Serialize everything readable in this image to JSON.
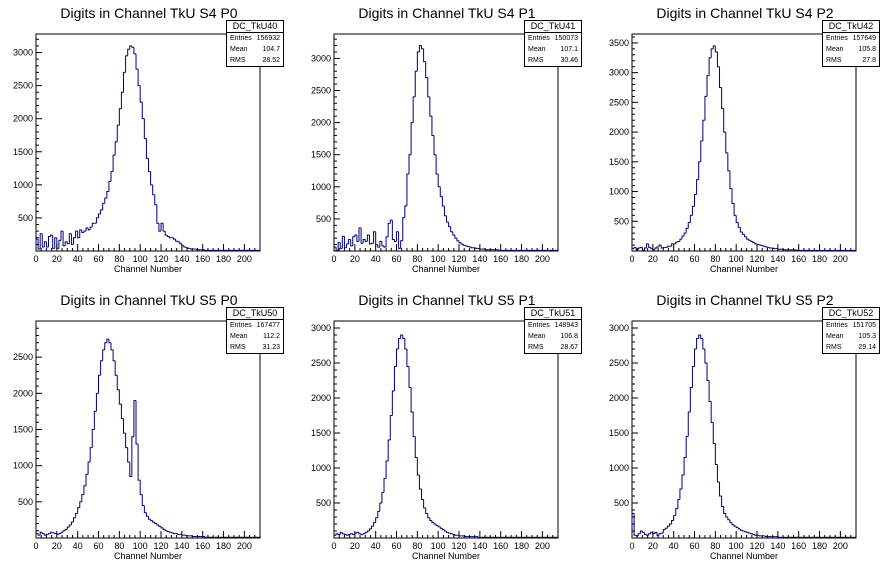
{
  "x_axis_label": "Channel Number",
  "stats_labels": {
    "entries": "Entries",
    "mean": "Mean",
    "rms": "RMS"
  },
  "colors": {
    "histogram": "#00007f",
    "axes": "#000000",
    "frame": "#000000"
  },
  "chart_data": [
    {
      "type": "histogram",
      "title": "Digits in Channel TkU S4 P0",
      "stats": {
        "name": "DC_TkU40",
        "entries": "156932",
        "mean": "104.7",
        "rms": "28.52"
      },
      "xlabel": "Channel Number",
      "xlim": [
        0,
        215
      ],
      "ylim": [
        0,
        3280
      ],
      "xticks": [
        0,
        20,
        40,
        60,
        80,
        100,
        120,
        140,
        160,
        180,
        200
      ],
      "yticks": [
        500,
        1000,
        1500,
        2000,
        2500,
        3000
      ],
      "bin_width": 2,
      "values": [
        180,
        30,
        260,
        60,
        140,
        60,
        220,
        240,
        40,
        200,
        40,
        160,
        300,
        80,
        140,
        110,
        260,
        100,
        200,
        300,
        200,
        320,
        280,
        300,
        350,
        320,
        360,
        420,
        420,
        500,
        560,
        620,
        720,
        800,
        900,
        1050,
        1200,
        1450,
        1650,
        1900,
        2150,
        2400,
        2700,
        2950,
        3050,
        3100,
        3080,
        2980,
        2750,
        2500,
        2250,
        2000,
        1700,
        1400,
        1200,
        1000,
        850,
        700,
        420,
        300,
        420,
        300,
        240,
        220,
        200,
        200,
        180,
        150,
        140,
        110,
        80,
        60,
        50,
        40,
        30,
        30,
        30,
        20,
        20,
        20,
        20,
        10,
        10,
        10,
        10,
        10,
        10,
        10,
        10,
        10,
        10,
        10,
        10,
        10,
        10,
        10,
        10,
        10,
        10,
        10,
        10,
        10,
        10,
        10,
        10,
        10,
        10,
        10
      ]
    },
    {
      "type": "histogram",
      "title": "Digits in Channel TkU S4 P1",
      "stats": {
        "name": "DC_TkU41",
        "entries": "150073",
        "mean": "107.1",
        "rms": "30.46"
      },
      "xlabel": "Channel Number",
      "xlim": [
        0,
        215
      ],
      "ylim": [
        0,
        3380
      ],
      "xticks": [
        0,
        20,
        40,
        60,
        80,
        100,
        120,
        140,
        160,
        180,
        200
      ],
      "yticks": [
        500,
        1000,
        1500,
        2000,
        2500,
        3000
      ],
      "bin_width": 2,
      "values": [
        60,
        10,
        130,
        40,
        230,
        50,
        110,
        180,
        80,
        220,
        250,
        150,
        360,
        120,
        180,
        150,
        250,
        110,
        120,
        300,
        100,
        60,
        150,
        80,
        60,
        220,
        430,
        480,
        180,
        150,
        300,
        40,
        160,
        520,
        700,
        1200,
        1500,
        2000,
        2400,
        2800,
        3100,
        3200,
        3150,
        2950,
        2700,
        2400,
        2100,
        1800,
        1500,
        1200,
        1000,
        850,
        700,
        550,
        450,
        380,
        300,
        250,
        200,
        160,
        130,
        110,
        90,
        80,
        70,
        60,
        50,
        50,
        40,
        40,
        30,
        30,
        30,
        20,
        20,
        20,
        20,
        20,
        20,
        10,
        10,
        10,
        10,
        10,
        10,
        10,
        10,
        10,
        10,
        10,
        10,
        10,
        10,
        10,
        10,
        10,
        10,
        10,
        10,
        10,
        10,
        10,
        10,
        10,
        10,
        10,
        10,
        10
      ]
    },
    {
      "type": "histogram",
      "title": "Digits in Channel TkU S4 P2",
      "stats": {
        "name": "DC_TkU42",
        "entries": "157649",
        "mean": "105.8",
        "rms": "27.8"
      },
      "xlabel": "Channel Number",
      "xlim": [
        0,
        215
      ],
      "ylim": [
        0,
        3650
      ],
      "xticks": [
        0,
        20,
        40,
        60,
        80,
        100,
        120,
        140,
        160,
        180,
        200
      ],
      "yticks": [
        500,
        1000,
        1500,
        2000,
        2500,
        3000,
        3500
      ],
      "bin_width": 2,
      "values": [
        40,
        60,
        20,
        50,
        60,
        10,
        50,
        120,
        60,
        40,
        20,
        50,
        70,
        100,
        50,
        60,
        60,
        80,
        80,
        120,
        120,
        150,
        160,
        200,
        250,
        300,
        380,
        480,
        600,
        750,
        950,
        1200,
        1500,
        1850,
        2200,
        2600,
        2950,
        3250,
        3400,
        3450,
        3350,
        3100,
        2750,
        2400,
        2000,
        1650,
        1350,
        1050,
        800,
        600,
        480,
        400,
        320,
        280,
        240,
        200,
        180,
        160,
        140,
        120,
        110,
        100,
        90,
        80,
        70,
        60,
        50,
        50,
        40,
        40,
        30,
        30,
        30,
        20,
        20,
        20,
        20,
        20,
        20,
        10,
        10,
        10,
        10,
        10,
        10,
        10,
        10,
        10,
        10,
        10,
        10,
        10,
        10,
        10,
        10,
        10,
        10,
        10,
        10,
        10,
        10,
        10,
        10,
        10,
        10,
        10,
        10,
        10
      ]
    },
    {
      "type": "histogram",
      "title": "Digits in Channel TkU S5 P0",
      "stats": {
        "name": "DC_TkU50",
        "entries": "167477",
        "mean": "112.2",
        "rms": "31.23"
      },
      "xlabel": "Channel Number",
      "xlim": [
        0,
        215
      ],
      "ylim": [
        0,
        3000
      ],
      "xticks": [
        0,
        20,
        40,
        60,
        80,
        100,
        120,
        140,
        160,
        180,
        200
      ],
      "yticks": [
        500,
        1000,
        1500,
        2000,
        2500
      ],
      "bin_width": 2,
      "values": [
        60,
        40,
        80,
        60,
        40,
        50,
        60,
        80,
        70,
        60,
        50,
        60,
        80,
        100,
        120,
        150,
        180,
        220,
        280,
        340,
        420,
        500,
        600,
        720,
        880,
        1050,
        1250,
        1500,
        1750,
        2000,
        2250,
        2450,
        2600,
        2700,
        2750,
        2700,
        2600,
        2450,
        2250,
        2050,
        1850,
        1650,
        1450,
        1250,
        1050,
        850,
        1400,
        1900,
        1300,
        800,
        600,
        450,
        350,
        300,
        260,
        240,
        220,
        200,
        180,
        160,
        140,
        120,
        100,
        90,
        80,
        70,
        60,
        60,
        50,
        50,
        40,
        40,
        30,
        30,
        30,
        20,
        20,
        20,
        20,
        20,
        20,
        10,
        10,
        10,
        10,
        10,
        10,
        10,
        10,
        10,
        10,
        10,
        10,
        10,
        10,
        10,
        10,
        10,
        10,
        10,
        10,
        10,
        10,
        10,
        10,
        10,
        10,
        10
      ]
    },
    {
      "type": "histogram",
      "title": "Digits in Channel TkU S5 P1",
      "stats": {
        "name": "DC_TkU51",
        "entries": "148943",
        "mean": "106.8",
        "rms": "28.67"
      },
      "xlabel": "Channel Number",
      "xlim": [
        0,
        215
      ],
      "ylim": [
        0,
        3100
      ],
      "xticks": [
        0,
        20,
        40,
        60,
        80,
        100,
        120,
        140,
        160,
        180,
        200
      ],
      "yticks": [
        500,
        1000,
        1500,
        2000,
        2500,
        3000
      ],
      "bin_width": 2,
      "values": [
        40,
        60,
        50,
        80,
        60,
        50,
        40,
        50,
        60,
        50,
        70,
        80,
        60,
        50,
        60,
        80,
        100,
        130,
        170,
        220,
        290,
        380,
        500,
        650,
        850,
        1100,
        1400,
        1750,
        2100,
        2450,
        2700,
        2850,
        2900,
        2850,
        2700,
        2450,
        2150,
        1800,
        1450,
        1150,
        900,
        700,
        550,
        430,
        350,
        290,
        250,
        220,
        200,
        180,
        160,
        140,
        120,
        100,
        80,
        70,
        60,
        50,
        40,
        40,
        30,
        30,
        30,
        20,
        20,
        20,
        20,
        20,
        20,
        10,
        10,
        10,
        10,
        10,
        10,
        10,
        10,
        10,
        10,
        10,
        10,
        10,
        10,
        10,
        10,
        10,
        10,
        10,
        10,
        10,
        10,
        10,
        10,
        10,
        10,
        10,
        10,
        10,
        10,
        10,
        10,
        10,
        10,
        10,
        10,
        10,
        10,
        10
      ]
    },
    {
      "type": "histogram",
      "title": "Digits in Channel TkU S5 P2",
      "stats": {
        "name": "DC_TkU52",
        "entries": "151705",
        "mean": "105.3",
        "rms": "29.14"
      },
      "xlabel": "Channel Number",
      "xlim": [
        0,
        215
      ],
      "ylim": [
        0,
        3100
      ],
      "xticks": [
        0,
        20,
        40,
        60,
        80,
        100,
        120,
        140,
        160,
        180,
        200
      ],
      "yticks": [
        500,
        1000,
        1500,
        2000,
        2500,
        3000
      ],
      "bin_width": 2,
      "values": [
        350,
        40,
        30,
        60,
        100,
        80,
        50,
        40,
        60,
        80,
        60,
        80,
        40,
        60,
        70,
        120,
        140,
        170,
        200,
        250,
        320,
        420,
        550,
        700,
        900,
        1150,
        1450,
        1800,
        2150,
        2450,
        2700,
        2850,
        2900,
        2850,
        2700,
        2500,
        2250,
        1950,
        1650,
        1350,
        1050,
        800,
        600,
        450,
        350,
        300,
        260,
        220,
        190,
        170,
        150,
        130,
        110,
        100,
        90,
        80,
        70,
        60,
        50,
        40,
        40,
        30,
        30,
        30,
        20,
        20,
        20,
        20,
        20,
        20,
        10,
        10,
        10,
        10,
        10,
        10,
        10,
        10,
        10,
        10,
        10,
        10,
        10,
        10,
        10,
        10,
        10,
        10,
        10,
        10,
        10,
        10,
        10,
        10,
        10,
        10,
        10,
        10,
        10,
        10,
        10,
        10,
        10,
        10,
        10,
        10,
        10,
        10
      ]
    }
  ]
}
